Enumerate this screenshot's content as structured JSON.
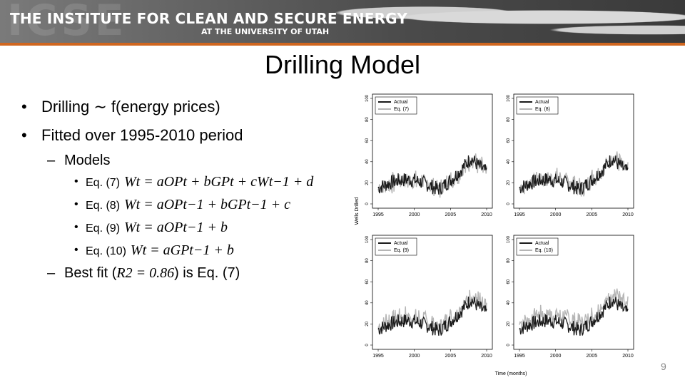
{
  "header": {
    "banner_ghost": "ICSE",
    "banner_title": "THE INSTITUTE FOR CLEAN AND SECURE ENERGY",
    "banner_subtitle": "AT THE UNIVERSITY OF UTAH",
    "accent_color": "#d0661f"
  },
  "slide": {
    "title": "Drilling Model",
    "page_number": "9"
  },
  "bullets": {
    "b1": "Drilling ∼ f(energy prices)",
    "b2": "Fitted over 1995-2010 period",
    "models_label": "Models",
    "models": [
      {
        "label": "Eq. (7)",
        "formula": "Wt = aOPt + bGPt + cWt−1 + d"
      },
      {
        "label": "Eq. (8)",
        "formula": "Wt = aOPt−1 + bGPt−1 + c"
      },
      {
        "label": "Eq. (9)",
        "formula": "Wt = aOPt−1 + b"
      },
      {
        "label": "Eq. (10)",
        "formula": "Wt = aGPt−1 + b"
      }
    ],
    "best_fit_prefix": "Best fit (",
    "best_fit_r2": "R2 = 0.86",
    "best_fit_suffix": ") is Eq. (7)"
  },
  "figure": {
    "y_axis_label": "Wells Drilled",
    "x_axis_label": "Time (months)",
    "y_ticks": [
      "0",
      "20",
      "40",
      "60",
      "80",
      "100"
    ],
    "x_ticks": [
      "1995",
      "2000",
      "2005",
      "2010"
    ],
    "panels": [
      {
        "legend_actual": "Actual",
        "legend_eq": "Eq. (7)"
      },
      {
        "legend_actual": "Actual",
        "legend_eq": "Eq. (8)"
      },
      {
        "legend_actual": "Actual",
        "legend_eq": "Eq. (9)"
      },
      {
        "legend_actual": "Actual",
        "legend_eq": "Eq. (10)"
      }
    ],
    "actual_color": "#1a1a1a",
    "model_color": "#b5b5b5"
  }
}
